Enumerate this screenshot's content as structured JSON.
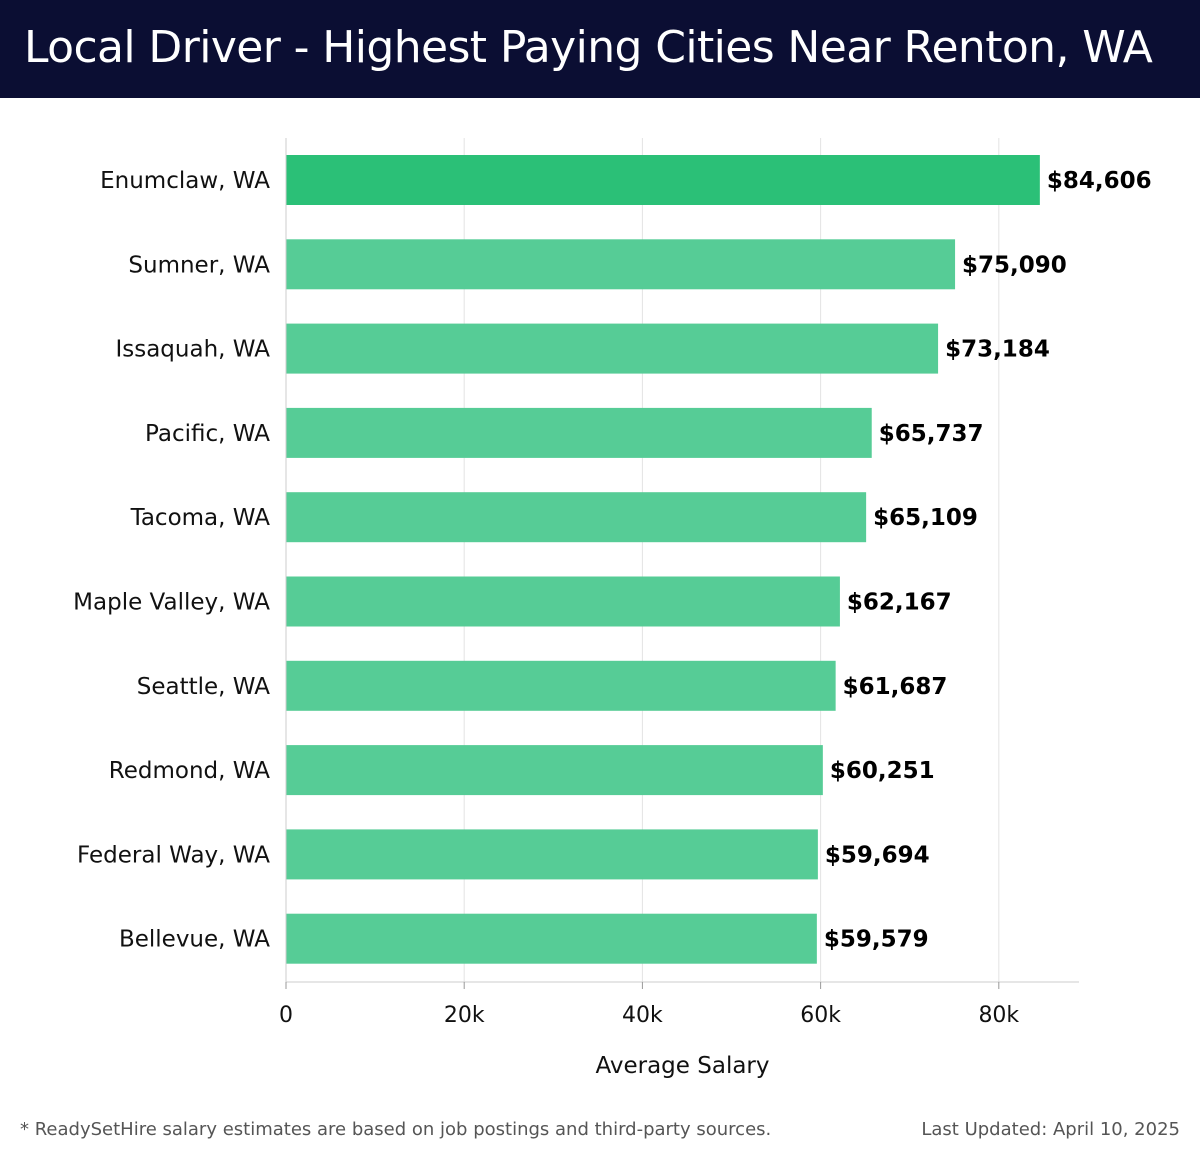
{
  "header": {
    "title": "Local Driver - Highest Paying Cities Near Renton, WA"
  },
  "chart_data": {
    "type": "bar",
    "orientation": "horizontal",
    "title": "Local Driver - Highest Paying Cities Near Renton, WA",
    "xlabel": "Average Salary",
    "ylabel": "",
    "xlim": [
      0,
      89000
    ],
    "grid": true,
    "categories": [
      "Enumclaw, WA",
      "Sumner, WA",
      "Issaquah, WA",
      "Pacific, WA",
      "Tacoma, WA",
      "Maple Valley, WA",
      "Seattle, WA",
      "Redmond, WA",
      "Federal Way, WA",
      "Bellevue, WA"
    ],
    "values": [
      84606,
      75090,
      73184,
      65737,
      65109,
      62167,
      61687,
      60251,
      59694,
      59579
    ],
    "value_labels": [
      "$84,606",
      "$75,090",
      "$73,184",
      "$65,737",
      "$65,109",
      "$62,167",
      "$61,687",
      "$60,251",
      "$59,694",
      "$59,579"
    ],
    "ticks": [
      0,
      20000,
      40000,
      60000,
      80000
    ],
    "tick_labels": [
      "0",
      "20k",
      "40k",
      "60k",
      "80k"
    ],
    "colors": {
      "bar_top": "#2bc077",
      "bar": "#56cc96",
      "grid": "#e3e3e3",
      "axis": "#cccccc"
    }
  },
  "footer": {
    "note": "* ReadySetHire salary estimates are based on job postings and third-party sources.",
    "updated": "Last Updated: April 10, 2025"
  }
}
